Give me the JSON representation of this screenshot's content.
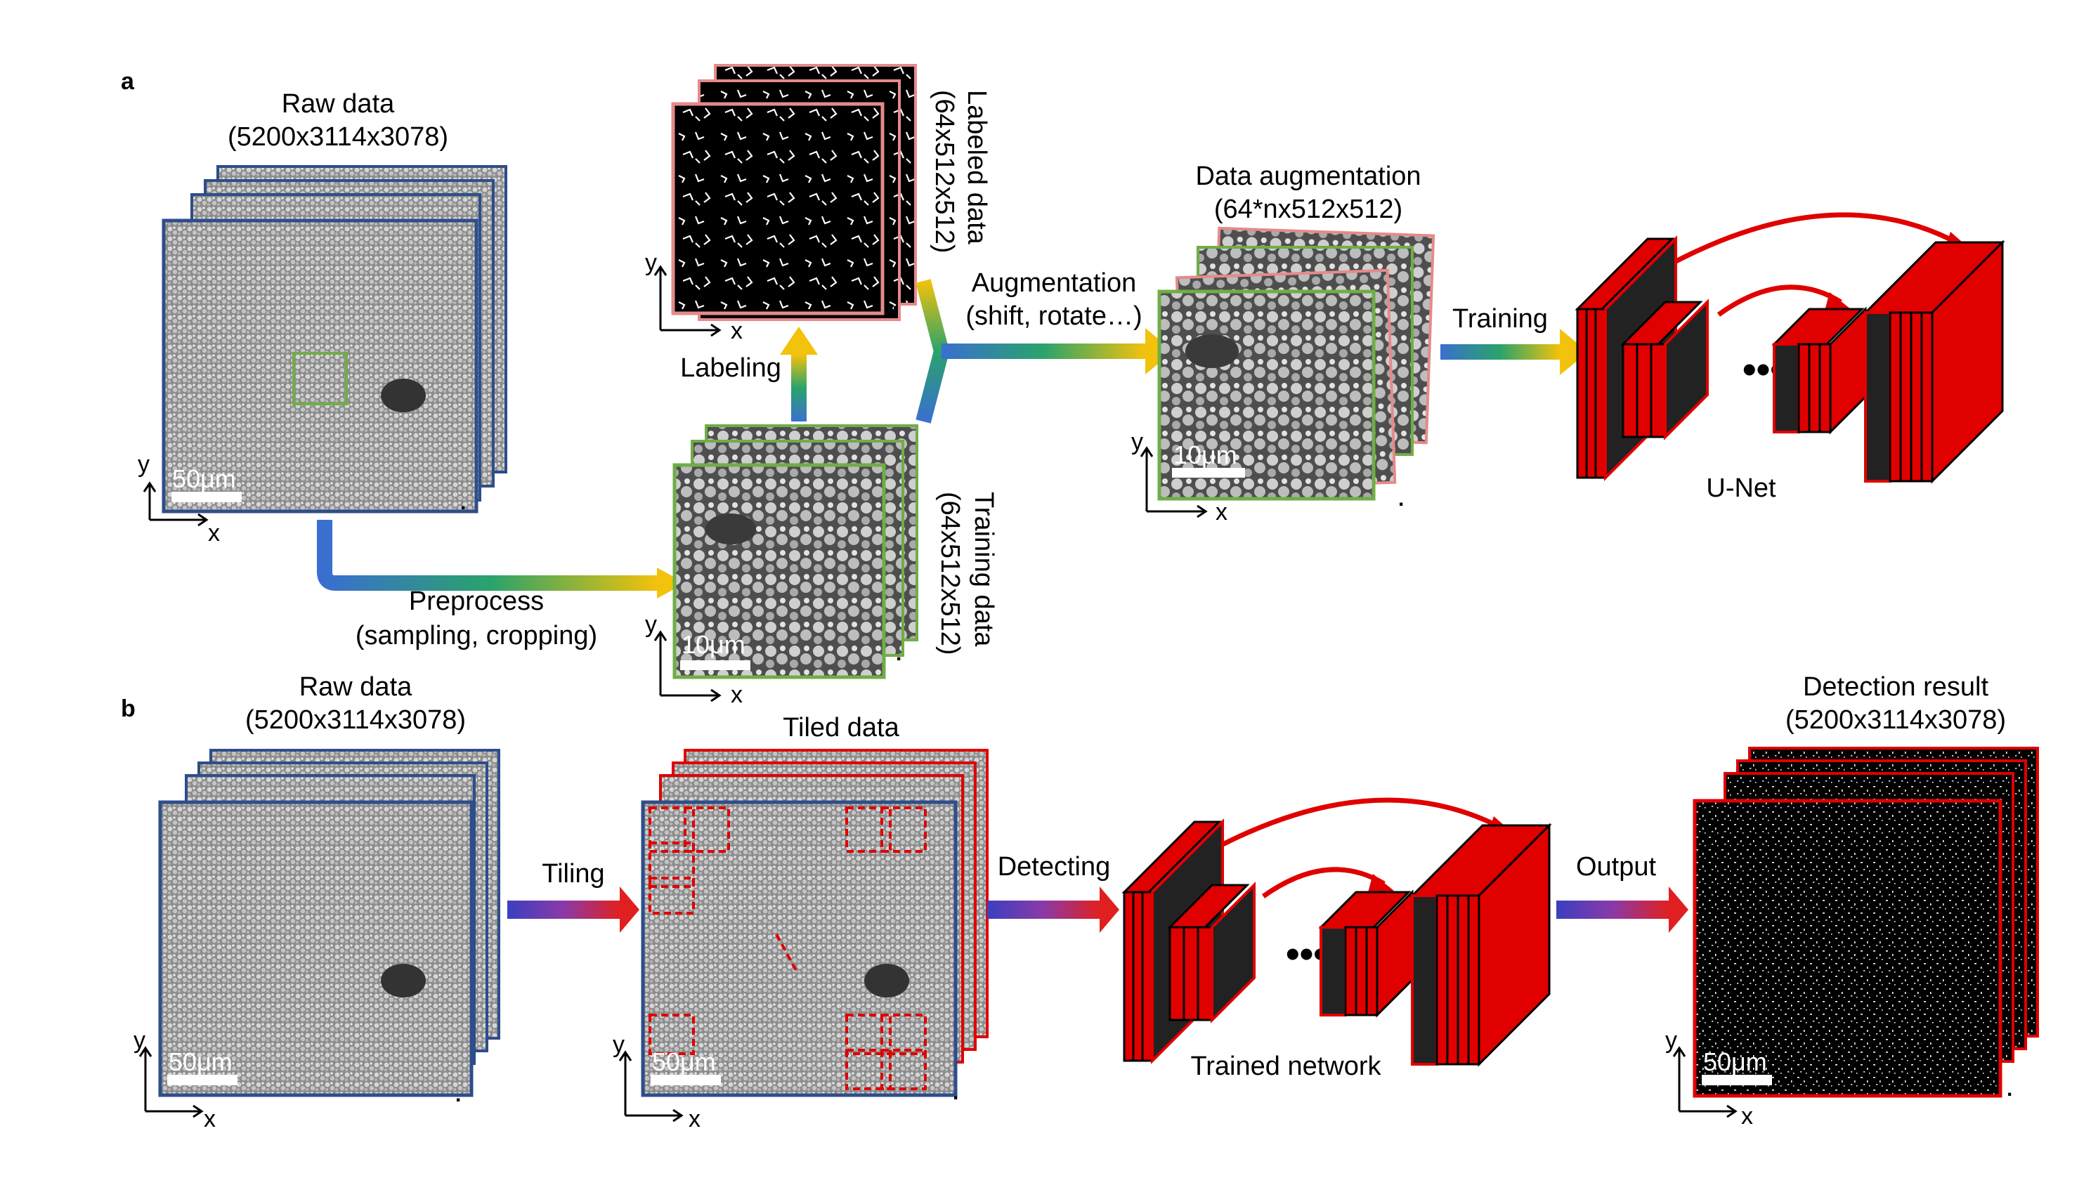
{
  "panel_a": {
    "letter": "a",
    "raw": {
      "title": "Raw data",
      "dims": "(5200x3114x3078)",
      "scale": "50μm"
    },
    "labeled": {
      "title": "Labeled data",
      "dims": "(64x512x512)"
    },
    "training": {
      "title": "Training data",
      "dims": "(64x512x512)",
      "scale": "10μm"
    },
    "augmented": {
      "title": "Data augmentation",
      "dims": "(64*nx512x512)",
      "scale": "10μm"
    },
    "steps": {
      "preprocess": "Preprocess",
      "preprocess_detail": "(sampling, cropping)",
      "labeling": "Labeling",
      "augmentation": "Augmentation",
      "augmentation_detail": "(shift, rotate…)",
      "training": "Training"
    },
    "network": "U-Net"
  },
  "panel_b": {
    "letter": "b",
    "raw": {
      "title": "Raw data",
      "dims": "(5200x3114x3078)",
      "scale": "50μm"
    },
    "tiled": {
      "title": "Tiled data",
      "scale": "50μm"
    },
    "result": {
      "title": "Detection result",
      "dims": "(5200x3114x3078)",
      "scale": "50μm"
    },
    "steps": {
      "tiling": "Tiling",
      "detecting": "Detecting",
      "output": "Output"
    },
    "network": "Trained network"
  },
  "axes": {
    "x": "x",
    "y": "y"
  },
  "ellipsis": "•••",
  "stack_dots": ".",
  "colors": {
    "raw_frame": "#2e4d8a",
    "green_frame": "#70ad47",
    "pink_frame": "#e58a8a",
    "red": "#e00000",
    "dark_block": "#222222"
  }
}
